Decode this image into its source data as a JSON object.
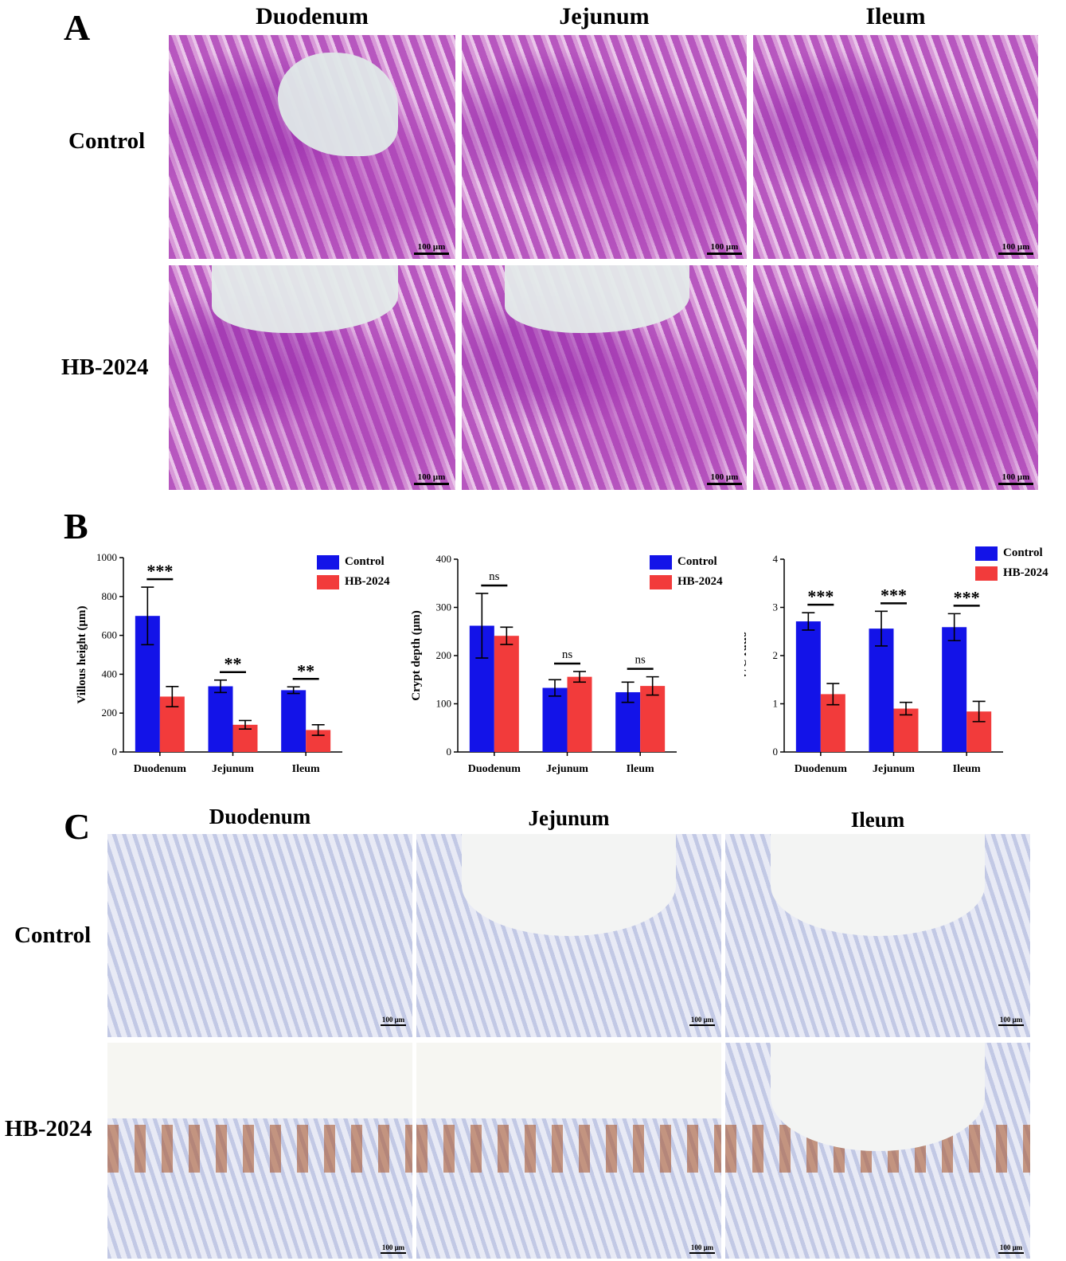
{
  "panel_labels": {
    "a": "A",
    "b": "B",
    "c": "C"
  },
  "panel_a": {
    "columns": [
      "Duodenum",
      "Jejunum",
      "Ileum"
    ],
    "rows": [
      "Control",
      "HB-2024"
    ],
    "scale_label": "100 μm"
  },
  "panel_c": {
    "columns": [
      "Duodenum",
      "Jejunum",
      "Ileum"
    ],
    "rows": [
      "Control",
      "HB-2024"
    ],
    "scale_label": "100 μm"
  },
  "colors": {
    "control": "#1313e8",
    "hb2024": "#f23b3b"
  },
  "legend": {
    "control": "Control",
    "hb2024": "HB-2024"
  },
  "chart_data": [
    {
      "type": "bar",
      "categories": [
        "Duodenum",
        "Jejunum",
        "Ileum"
      ],
      "series": [
        {
          "name": "Control",
          "values": [
            700,
            338,
            318
          ],
          "errors": [
            148,
            32,
            17
          ]
        },
        {
          "name": "HB-2024",
          "values": [
            285,
            140,
            113
          ],
          "errors": [
            52,
            22,
            27
          ]
        }
      ],
      "significance": [
        "***",
        "**",
        "**"
      ],
      "ylabel": "Villous height (μm)",
      "ylim": [
        0,
        1000
      ],
      "yticks": [
        0,
        200,
        400,
        600,
        800,
        1000
      ],
      "legend_position": "top-right"
    },
    {
      "type": "bar",
      "categories": [
        "Duodenum",
        "Jejunum",
        "Ileum"
      ],
      "series": [
        {
          "name": "Control",
          "values": [
            262,
            133,
            124
          ],
          "errors": [
            67,
            17,
            21
          ]
        },
        {
          "name": "HB-2024",
          "values": [
            241,
            156,
            137
          ],
          "errors": [
            18,
            11,
            19
          ]
        }
      ],
      "significance": [
        "ns",
        "ns",
        "ns"
      ],
      "ylabel": "Crypt depth (μm)",
      "ylim": [
        0,
        400
      ],
      "yticks": [
        0,
        100,
        200,
        300,
        400
      ],
      "legend_position": "top-right"
    },
    {
      "type": "bar",
      "categories": [
        "Duodenum",
        "Jejunum",
        "Ileum"
      ],
      "series": [
        {
          "name": "Control",
          "values": [
            2.71,
            2.56,
            2.59
          ],
          "errors": [
            0.18,
            0.36,
            0.28
          ]
        },
        {
          "name": "HB-2024",
          "values": [
            1.2,
            0.9,
            0.84
          ],
          "errors": [
            0.22,
            0.13,
            0.21
          ]
        }
      ],
      "significance": [
        "***",
        "***",
        "***"
      ],
      "ylabel": "V/C ratio",
      "ylim": [
        0,
        4
      ],
      "yticks": [
        0,
        1,
        2,
        3,
        4
      ],
      "legend_position": "top-right"
    }
  ]
}
